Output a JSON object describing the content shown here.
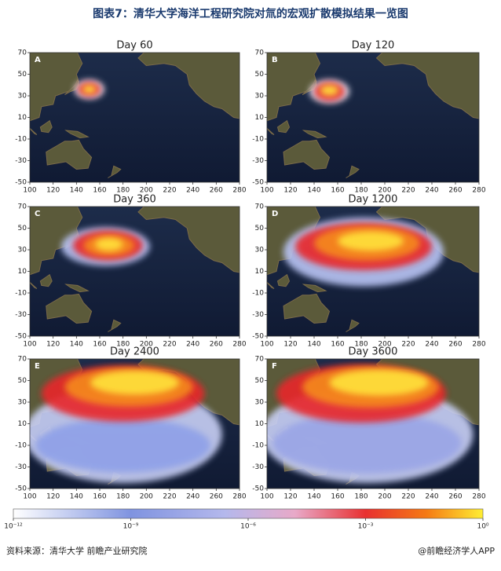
{
  "title": "图表7：清华大学海洋工程研究院对氚的宏观扩散模拟结果一览图",
  "panels": [
    {
      "title": "Day 60",
      "letter": "A"
    },
    {
      "title": "Day 120",
      "letter": "B"
    },
    {
      "title": "Day 360",
      "letter": "C"
    },
    {
      "title": "Day 1200",
      "letter": "D"
    },
    {
      "title": "Day 2400",
      "letter": "E"
    },
    {
      "title": "Day 3600",
      "letter": "F"
    }
  ],
  "xticks": [
    100,
    120,
    140,
    160,
    180,
    200,
    220,
    240,
    260,
    280
  ],
  "yticks": [
    70,
    50,
    30,
    10,
    -10,
    -30,
    -50
  ],
  "colorbar": {
    "ticks": [
      {
        "value": 1e-12,
        "label": "10⁻¹²"
      },
      {
        "value": 1e-09,
        "label": "10⁻⁹"
      },
      {
        "value": 1e-06,
        "label": "10⁻⁶"
      },
      {
        "value": 0.001,
        "label": "10⁻³"
      },
      {
        "value": 1,
        "label": "10⁰"
      }
    ]
  },
  "source": "资料来源：清华大学 前瞻产业研究院",
  "credit": "@前瞻经济学人APP"
}
